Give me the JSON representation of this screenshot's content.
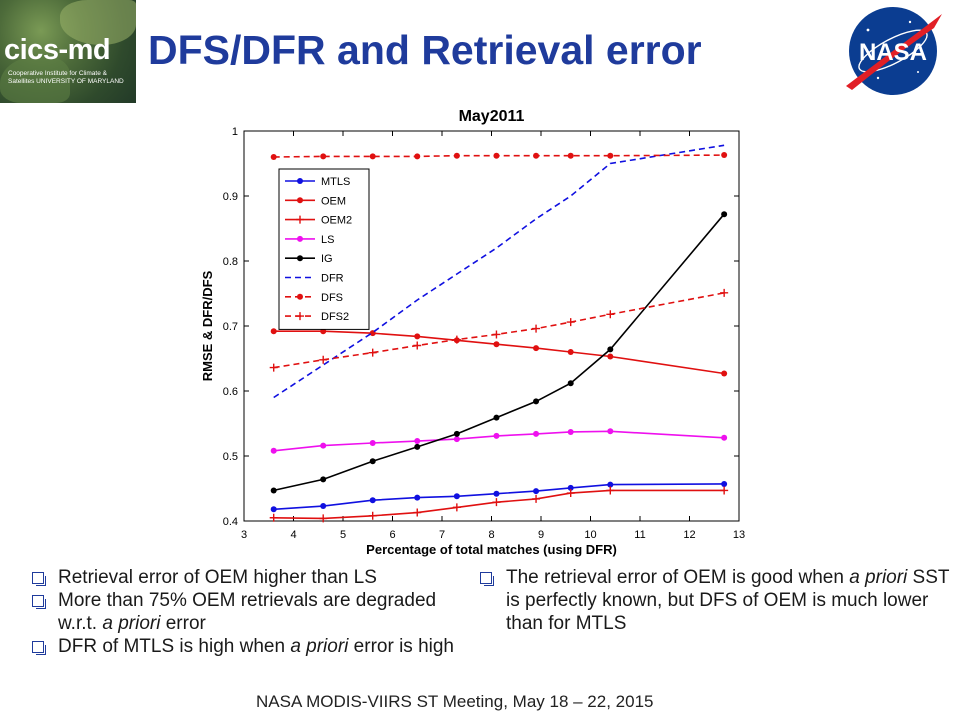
{
  "header": {
    "title": "DFS/DFR and Retrieval error",
    "cics_logo_text": "cics-md",
    "cics_logo_subtext": "Cooperative Institute for Climate & Satellites UNIVERSITY OF MARYLAND",
    "nasa_logo_text": "NASA"
  },
  "colors": {
    "title": "#1f3b9c",
    "MTLS": "#1010e0",
    "OEM": "#e01010",
    "OEM2": "#e01010",
    "LS": "#ee10ee",
    "IG": "#000000",
    "DFR": "#1010e0",
    "DFS": "#e01010",
    "DFS2": "#e01010"
  },
  "chart_data": {
    "type": "line",
    "title": "May2011",
    "xlabel": "Percentage of total matches (using DFR)",
    "ylabel": "RMSE & DFR/DFS",
    "xlim": [
      3,
      13
    ],
    "ylim": [
      0.4,
      1.0
    ],
    "xticks": [
      "3",
      "4",
      "5",
      "6",
      "7",
      "8",
      "9",
      "10",
      "11",
      "12",
      "13"
    ],
    "yticks": [
      "0.4",
      "0.5",
      "0.6",
      "0.7",
      "0.8",
      "0.9",
      "1"
    ],
    "grid": false,
    "legend_position": "top-left",
    "series": [
      {
        "name": "MTLS",
        "style": "solid",
        "marker": "dot",
        "x": [
          3.6,
          4.6,
          5.6,
          6.5,
          7.3,
          8.1,
          8.9,
          9.6,
          10.4,
          12.7
        ],
        "y": [
          0.418,
          0.423,
          0.432,
          0.436,
          0.438,
          0.442,
          0.446,
          0.451,
          0.456,
          0.457
        ]
      },
      {
        "name": "OEM",
        "style": "solid",
        "marker": "dot",
        "x": [
          3.6,
          4.6,
          5.6,
          6.5,
          7.3,
          8.1,
          8.9,
          9.6,
          10.4,
          12.7
        ],
        "y": [
          0.692,
          0.692,
          0.689,
          0.684,
          0.678,
          0.672,
          0.666,
          0.66,
          0.653,
          0.627
        ]
      },
      {
        "name": "OEM2",
        "style": "solid",
        "marker": "plus",
        "x": [
          3.6,
          4.6,
          5.6,
          6.5,
          7.3,
          8.1,
          8.9,
          9.6,
          10.4,
          12.7
        ],
        "y": [
          0.405,
          0.404,
          0.408,
          0.413,
          0.421,
          0.429,
          0.434,
          0.443,
          0.447,
          0.447
        ]
      },
      {
        "name": "LS",
        "style": "solid",
        "marker": "dot",
        "x": [
          3.6,
          4.6,
          5.6,
          6.5,
          7.3,
          8.1,
          8.9,
          9.6,
          10.4,
          12.7
        ],
        "y": [
          0.508,
          0.516,
          0.52,
          0.523,
          0.526,
          0.531,
          0.534,
          0.537,
          0.538,
          0.528
        ]
      },
      {
        "name": "IG",
        "style": "solid",
        "marker": "dot",
        "x": [
          3.6,
          4.6,
          5.6,
          6.5,
          7.3,
          8.1,
          8.9,
          9.6,
          10.4,
          12.7
        ],
        "y": [
          0.447,
          0.464,
          0.492,
          0.514,
          0.534,
          0.559,
          0.584,
          0.612,
          0.664,
          0.872
        ]
      },
      {
        "name": "DFR",
        "style": "dashed",
        "marker": "none",
        "x": [
          3.6,
          4.6,
          5.6,
          6.5,
          7.3,
          8.1,
          8.9,
          9.6,
          10.4,
          12.7
        ],
        "y": [
          0.59,
          0.64,
          0.69,
          0.74,
          0.78,
          0.82,
          0.865,
          0.9,
          0.95,
          0.978
        ]
      },
      {
        "name": "DFS",
        "style": "dashed",
        "marker": "dot",
        "x": [
          3.6,
          4.6,
          5.6,
          6.5,
          7.3,
          8.1,
          8.9,
          9.6,
          10.4,
          12.7
        ],
        "y": [
          0.96,
          0.961,
          0.961,
          0.961,
          0.962,
          0.962,
          0.962,
          0.962,
          0.962,
          0.963
        ]
      },
      {
        "name": "DFS2",
        "style": "dashed",
        "marker": "plus",
        "x": [
          3.6,
          4.6,
          5.6,
          6.5,
          7.3,
          8.1,
          8.9,
          9.6,
          10.4,
          12.7
        ],
        "y": [
          0.636,
          0.648,
          0.659,
          0.67,
          0.679,
          0.687,
          0.696,
          0.706,
          0.718,
          0.751
        ]
      }
    ]
  },
  "bullets_left": [
    {
      "parts": [
        {
          "t": "Retrieval error of OEM higher than LS",
          "i": false
        }
      ]
    },
    {
      "parts": [
        {
          "t": "More than 75% OEM retrievals are degraded w.r.t. ",
          "i": false
        },
        {
          "t": "a priori",
          "i": true
        },
        {
          "t": " error",
          "i": false
        }
      ]
    },
    {
      "parts": [
        {
          "t": "DFR of MTLS is high when ",
          "i": false
        },
        {
          "t": "a priori",
          "i": true
        },
        {
          "t": " error is high",
          "i": false
        }
      ]
    }
  ],
  "bullets_right": [
    {
      "parts": [
        {
          "t": "The retrieval error of OEM is good when ",
          "i": false
        },
        {
          "t": "a priori",
          "i": true
        },
        {
          "t": " SST is perfectly known, but DFS of OEM is much lower than for MTLS",
          "i": false
        }
      ]
    }
  ],
  "footer": {
    "text": "NASA MODIS-VIIRS ST Meeting, May 18 – 22, 2015"
  }
}
